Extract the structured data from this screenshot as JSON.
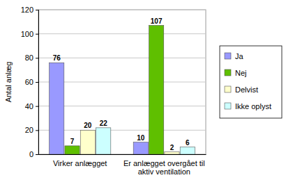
{
  "chart_data": {
    "type": "bar",
    "y_label": "Antal anlæg",
    "categories": [
      "Virker anlægget",
      "Er anlægget overgået til aktiv ventilation"
    ],
    "series": [
      {
        "name": "Ja",
        "color": "#9999ff",
        "values": [
          76,
          10
        ]
      },
      {
        "name": "Nej",
        "color": "#5fbf00",
        "values": [
          7,
          107
        ]
      },
      {
        "name": "Delvist",
        "color": "#ffffcc",
        "values": [
          20,
          2
        ]
      },
      {
        "name": "Ikke oplyst",
        "color": "#ccffff",
        "values": [
          22,
          6
        ]
      }
    ],
    "ylim": [
      0,
      120
    ],
    "yticks": [
      0,
      20,
      40,
      60,
      80,
      100,
      120
    ],
    "grid": true,
    "legend": "right",
    "data_labels": true
  }
}
